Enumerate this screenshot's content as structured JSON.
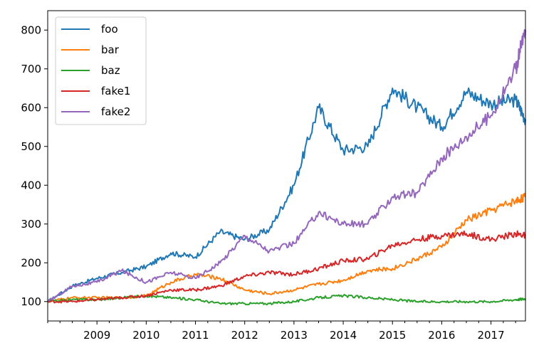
{
  "chart_data": {
    "type": "line",
    "title": "",
    "xlabel": "",
    "ylabel": "",
    "xlim": [
      2008.0,
      2017.7
    ],
    "ylim": [
      50,
      850
    ],
    "yticks": [
      100,
      200,
      300,
      400,
      500,
      600,
      700,
      800
    ],
    "xticks": [
      2009,
      2010,
      2011,
      2012,
      2013,
      2014,
      2015,
      2016,
      2017
    ],
    "grid": false,
    "legend_position": "upper-left",
    "x": [
      2008.0,
      2008.5,
      2009.0,
      2009.5,
      2010.0,
      2010.5,
      2011.0,
      2011.5,
      2012.0,
      2012.5,
      2013.0,
      2013.5,
      2014.0,
      2014.5,
      2015.0,
      2015.5,
      2016.0,
      2016.5,
      2017.0,
      2017.5,
      2017.7
    ],
    "series": [
      {
        "name": "foo",
        "color": "#1f77b4",
        "values": [
          100,
          140,
          160,
          175,
          190,
          225,
          215,
          280,
          260,
          285,
          400,
          600,
          490,
          500,
          650,
          600,
          550,
          640,
          610,
          620,
          570
        ]
      },
      {
        "name": "bar",
        "color": "#ff7f0e",
        "values": [
          100,
          110,
          110,
          110,
          115,
          150,
          170,
          160,
          130,
          120,
          130,
          145,
          155,
          180,
          185,
          210,
          240,
          310,
          335,
          360,
          370
        ]
      },
      {
        "name": "baz",
        "color": "#2ca02c",
        "values": [
          100,
          105,
          105,
          110,
          115,
          110,
          105,
          95,
          95,
          95,
          100,
          110,
          115,
          110,
          105,
          100,
          100,
          100,
          100,
          105,
          107
        ]
      },
      {
        "name": "fake1",
        "color": "#d62728",
        "values": [
          100,
          100,
          105,
          110,
          115,
          130,
          130,
          140,
          165,
          175,
          170,
          185,
          205,
          210,
          245,
          260,
          270,
          275,
          260,
          275,
          270
        ]
      },
      {
        "name": "fake2",
        "color": "#9467bd",
        "values": [
          100,
          140,
          150,
          180,
          150,
          175,
          160,
          200,
          270,
          230,
          250,
          330,
          300,
          300,
          370,
          380,
          470,
          525,
          580,
          700,
          800
        ]
      }
    ]
  }
}
